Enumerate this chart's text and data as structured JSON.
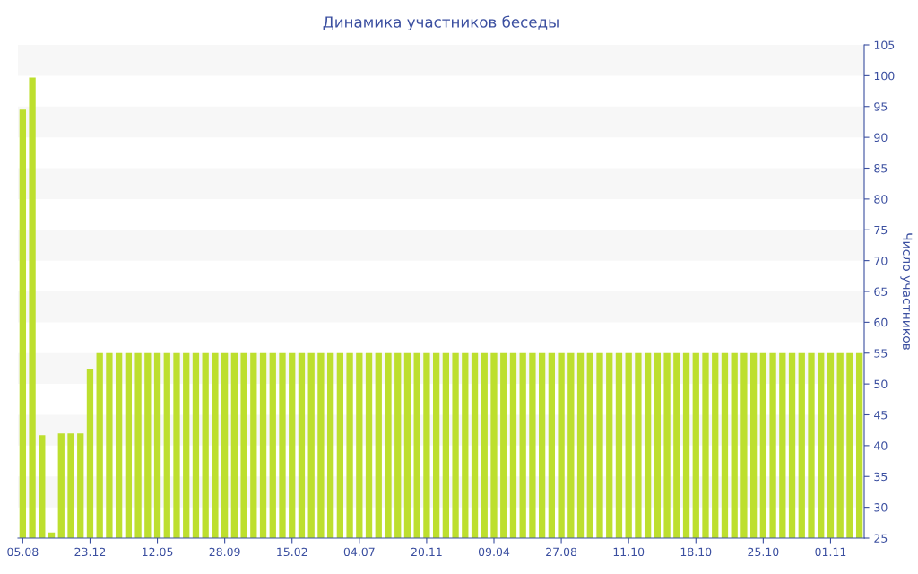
{
  "chart_data": {
    "type": "bar",
    "title": "Динамика участников беседы",
    "ylabel": "Число участников",
    "categories": [
      "05.08",
      null,
      null,
      null,
      null,
      null,
      null,
      "23.12",
      null,
      null,
      null,
      null,
      null,
      null,
      "12.05",
      null,
      null,
      null,
      null,
      null,
      null,
      "28.09",
      null,
      null,
      null,
      null,
      null,
      null,
      "15.02",
      null,
      null,
      null,
      null,
      null,
      null,
      "04.07",
      null,
      null,
      null,
      null,
      null,
      null,
      "20.11",
      null,
      null,
      null,
      null,
      null,
      null,
      "09.04",
      null,
      null,
      null,
      null,
      null,
      null,
      "27.08",
      null,
      null,
      null,
      null,
      null,
      null,
      "11.10",
      null,
      null,
      null,
      null,
      null,
      null,
      "18.10",
      null,
      null,
      null,
      null,
      null,
      null,
      "25.10",
      null,
      null,
      null,
      null,
      null,
      null,
      "01.11",
      null,
      null,
      null
    ],
    "values": [
      94.5,
      99.7,
      41.7,
      25.9,
      42,
      42,
      42,
      52.5,
      55,
      55,
      55,
      55,
      55,
      55,
      55,
      55,
      55,
      55,
      55,
      55,
      55,
      55,
      55,
      55,
      55,
      55,
      55,
      55,
      55,
      55,
      55,
      55,
      55,
      55,
      55,
      55,
      55,
      55,
      55,
      55,
      55,
      55,
      55,
      55,
      55,
      55,
      55,
      55,
      55,
      55,
      55,
      55,
      55,
      55,
      55,
      55,
      55,
      55,
      55,
      55,
      55,
      55,
      55,
      55,
      55,
      55,
      55,
      55,
      55,
      55,
      55,
      55,
      55,
      55,
      55,
      55,
      55,
      55,
      55,
      55,
      55,
      55,
      55,
      55,
      55,
      55,
      55,
      55
    ],
    "color": "#bddf2e",
    "ylim": [
      25,
      105
    ],
    "yticks": [
      25,
      30,
      35,
      40,
      45,
      50,
      55,
      60,
      65,
      70,
      75,
      80,
      85,
      90,
      95,
      100,
      105
    ],
    "bands": [
      {
        "axis": "y",
        "from": 30,
        "to": 35,
        "color": "#f7f7f7"
      },
      {
        "axis": "y",
        "from": 40,
        "to": 45,
        "color": "#f7f7f7"
      },
      {
        "axis": "y",
        "from": 50,
        "to": 55,
        "color": "#f7f7f7"
      },
      {
        "axis": "y",
        "from": 60,
        "to": 65,
        "color": "#f7f7f7"
      },
      {
        "axis": "y",
        "from": 70,
        "to": 75,
        "color": "#f7f7f7"
      },
      {
        "axis": "y",
        "from": 80,
        "to": 85,
        "color": "#f7f7f7"
      },
      {
        "axis": "y",
        "from": 90,
        "to": 95,
        "color": "#f7f7f7"
      },
      {
        "axis": "y",
        "from": 100,
        "to": 105,
        "color": "#f7f7f7"
      }
    ]
  }
}
